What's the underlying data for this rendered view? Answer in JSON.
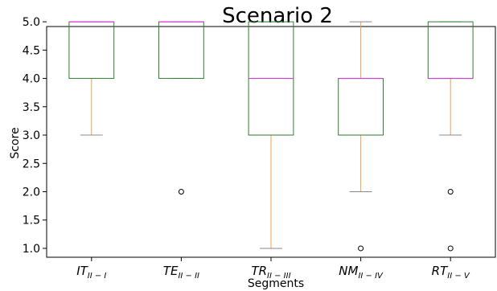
{
  "chart_data": {
    "type": "box",
    "title": "Scenario 2",
    "xlabel": "Segments",
    "ylabel": "Score",
    "ylim": [
      0.9,
      5.2
    ],
    "yticks": [
      "1.0",
      "1.5",
      "2.0",
      "2.5",
      "3.0",
      "3.5",
      "4.0",
      "4.5",
      "5.0"
    ],
    "categories": [
      {
        "base": "IT",
        "sub": "II − I"
      },
      {
        "base": "TE",
        "sub": "II − II"
      },
      {
        "base": "TR",
        "sub": "II − III"
      },
      {
        "base": "NM",
        "sub": "II − IV"
      },
      {
        "base": "RT",
        "sub": "II − V"
      }
    ],
    "boxes": [
      {
        "whisker_low": 3.0,
        "q1": 4.0,
        "median": 5.0,
        "q3": 5.0,
        "whisker_high": 5.0,
        "outliers": []
      },
      {
        "whisker_low": 4.0,
        "q1": 4.0,
        "median": 5.0,
        "q3": 5.0,
        "whisker_high": 5.0,
        "outliers": [
          2.0
        ]
      },
      {
        "whisker_low": 1.0,
        "q1": 3.0,
        "median": 4.0,
        "q3": 5.0,
        "whisker_high": 5.0,
        "outliers": []
      },
      {
        "whisker_low": 2.0,
        "q1": 3.0,
        "median": 4.0,
        "q3": 4.0,
        "whisker_high": 5.0,
        "outliers": [
          1.0
        ]
      },
      {
        "whisker_low": 3.0,
        "q1": 4.0,
        "median": 4.0,
        "q3": 5.0,
        "whisker_high": 5.0,
        "outliers": [
          2.0,
          1.0
        ]
      }
    ],
    "colors": {
      "box": "#2e7d32",
      "median": "#d63ad6",
      "whisker": "#f0a04b",
      "cap": "#888888",
      "outlier": "#000000"
    },
    "grid": false,
    "legend": "none"
  }
}
